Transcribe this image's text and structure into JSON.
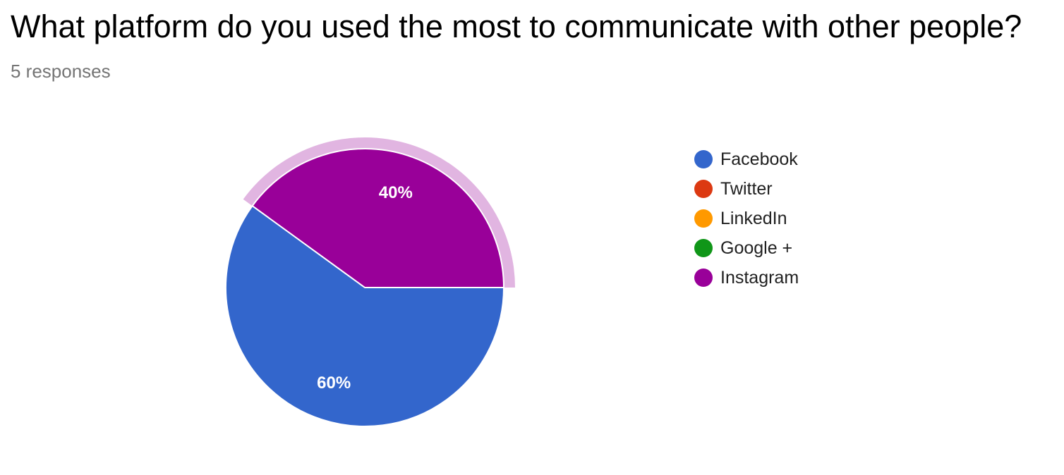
{
  "chart_data": {
    "type": "pie",
    "title": "What platform do you used the most to communicate with other people?",
    "subtitle": "5 responses",
    "legend_position": "right",
    "highlighted": "Instagram",
    "slices": [
      {
        "label": "Facebook",
        "value": 60,
        "display": "60%",
        "color": "#3366cc"
      },
      {
        "label": "Twitter",
        "value": 0,
        "display": "",
        "color": "#dc3912"
      },
      {
        "label": "LinkedIn",
        "value": 0,
        "display": "",
        "color": "#ff9900"
      },
      {
        "label": "Google +",
        "value": 0,
        "display": "",
        "color": "#109618"
      },
      {
        "label": "Instagram",
        "value": 40,
        "display": "40%",
        "color": "#990099"
      }
    ]
  }
}
